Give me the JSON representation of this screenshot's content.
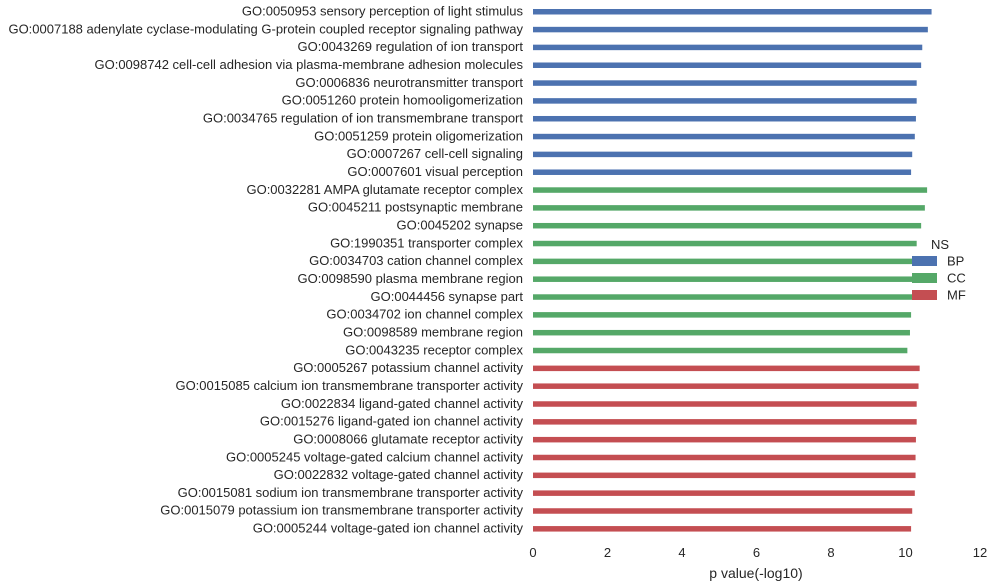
{
  "chart_data": {
    "type": "bar",
    "orientation": "horizontal",
    "xlabel": "p value(-log10)",
    "xlim": [
      0,
      12
    ],
    "xticks": [
      0,
      2,
      4,
      6,
      8,
      10,
      12
    ],
    "grid": false,
    "legend": {
      "title": "NS",
      "placement": "right",
      "entries": [
        {
          "name": "BP",
          "color": "#4c72b0"
        },
        {
          "name": "CC",
          "color": "#55a868"
        },
        {
          "name": "MF",
          "color": "#c44e52"
        }
      ]
    },
    "bars": [
      {
        "label": "GO:0050953 sensory perception of light stimulus",
        "value": 10.7,
        "group": "BP"
      },
      {
        "label": "GO:0007188 adenylate cyclase-modulating G-protein coupled receptor signaling pathway",
        "value": 10.6,
        "group": "BP"
      },
      {
        "label": "GO:0043269 regulation of ion transport",
        "value": 10.45,
        "group": "BP"
      },
      {
        "label": "GO:0098742 cell-cell adhesion via plasma-membrane adhesion molecules",
        "value": 10.42,
        "group": "BP"
      },
      {
        "label": "GO:0006836 neurotransmitter transport",
        "value": 10.3,
        "group": "BP"
      },
      {
        "label": "GO:0051260 protein homooligomerization",
        "value": 10.3,
        "group": "BP"
      },
      {
        "label": "GO:0034765 regulation of ion transmembrane transport",
        "value": 10.28,
        "group": "BP"
      },
      {
        "label": "GO:0051259 protein oligomerization",
        "value": 10.25,
        "group": "BP"
      },
      {
        "label": "GO:0007267 cell-cell signaling",
        "value": 10.18,
        "group": "BP"
      },
      {
        "label": "GO:0007601 visual perception",
        "value": 10.15,
        "group": "BP"
      },
      {
        "label": "GO:0032281 AMPA glutamate receptor complex",
        "value": 10.58,
        "group": "CC"
      },
      {
        "label": "GO:0045211 postsynaptic membrane",
        "value": 10.52,
        "group": "CC"
      },
      {
        "label": "GO:0045202 synapse",
        "value": 10.42,
        "group": "CC"
      },
      {
        "label": "GO:1990351 transporter complex",
        "value": 10.3,
        "group": "CC"
      },
      {
        "label": "GO:0034703 cation channel complex",
        "value": 10.25,
        "group": "CC"
      },
      {
        "label": "GO:0098590 plasma membrane region",
        "value": 10.2,
        "group": "CC"
      },
      {
        "label": "GO:0044456 synapse part",
        "value": 10.18,
        "group": "CC"
      },
      {
        "label": "GO:0034702 ion channel complex",
        "value": 10.15,
        "group": "CC"
      },
      {
        "label": "GO:0098589 membrane region",
        "value": 10.12,
        "group": "CC"
      },
      {
        "label": "GO:0043235 receptor complex",
        "value": 10.05,
        "group": "CC"
      },
      {
        "label": "GO:0005267 potassium channel activity",
        "value": 10.38,
        "group": "MF"
      },
      {
        "label": "GO:0015085 calcium ion transmembrane transporter activity",
        "value": 10.35,
        "group": "MF"
      },
      {
        "label": "GO:0022834 ligand-gated channel activity",
        "value": 10.3,
        "group": "MF"
      },
      {
        "label": "GO:0015276 ligand-gated ion channel activity",
        "value": 10.3,
        "group": "MF"
      },
      {
        "label": "GO:0008066 glutamate receptor activity",
        "value": 10.28,
        "group": "MF"
      },
      {
        "label": "GO:0005245 voltage-gated calcium channel activity",
        "value": 10.27,
        "group": "MF"
      },
      {
        "label": "GO:0022832 voltage-gated channel activity",
        "value": 10.27,
        "group": "MF"
      },
      {
        "label": "GO:0015081 sodium ion transmembrane transporter activity",
        "value": 10.25,
        "group": "MF"
      },
      {
        "label": "GO:0015079 potassium ion transmembrane transporter activity",
        "value": 10.18,
        "group": "MF"
      },
      {
        "label": "GO:0005244 voltage-gated ion channel activity",
        "value": 10.15,
        "group": "MF"
      }
    ]
  }
}
